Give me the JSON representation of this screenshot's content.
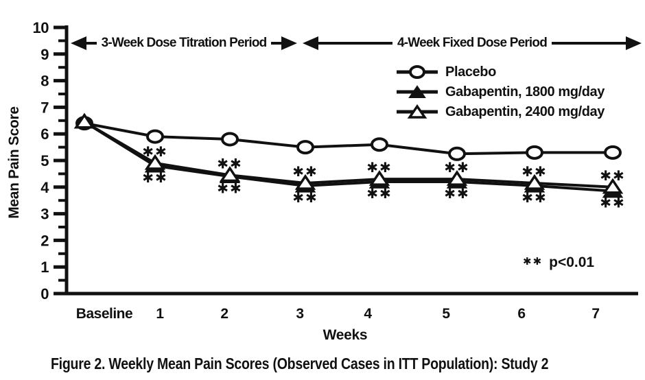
{
  "colors": {
    "ink": "#111111",
    "background": "#ffffff"
  },
  "chart_data": {
    "type": "line",
    "caption": "Figure 2. Weekly Mean Pain Scores (Observed Cases in ITT Population): Study 2",
    "xlabel": "Weeks",
    "ylabel": "Mean Pain Score",
    "ylim": [
      0,
      10
    ],
    "y_tick_step": 1,
    "y_minor_tick_step": 0.5,
    "grid": false,
    "legend_position": "upper-right",
    "categories": [
      "Baseline",
      "1",
      "2",
      "3",
      "4",
      "5",
      "6",
      "7"
    ],
    "series": [
      {
        "name": "Placebo",
        "marker": "circle-open",
        "values": [
          6.4,
          5.9,
          5.8,
          5.5,
          5.6,
          5.25,
          5.3,
          5.3
        ]
      },
      {
        "name": "Gabapentin, 1800 mg/day",
        "marker": "triangle-filled",
        "values": [
          6.45,
          4.8,
          4.4,
          4.05,
          4.2,
          4.2,
          4.05,
          3.85
        ]
      },
      {
        "name": "Gabapentin, 2400 mg/day",
        "marker": "triangle-open",
        "values": [
          6.45,
          4.9,
          4.45,
          4.15,
          4.3,
          4.3,
          4.15,
          4.0
        ]
      }
    ],
    "annotations": [
      "3-Week Dose Titration Period",
      "4-Week Fixed Dose Period"
    ],
    "significance": {
      "symbol": "✱✱",
      "note_text": "p<0.01",
      "marked_categories": [
        "1",
        "2",
        "3",
        "4",
        "5",
        "6",
        "7"
      ]
    }
  }
}
